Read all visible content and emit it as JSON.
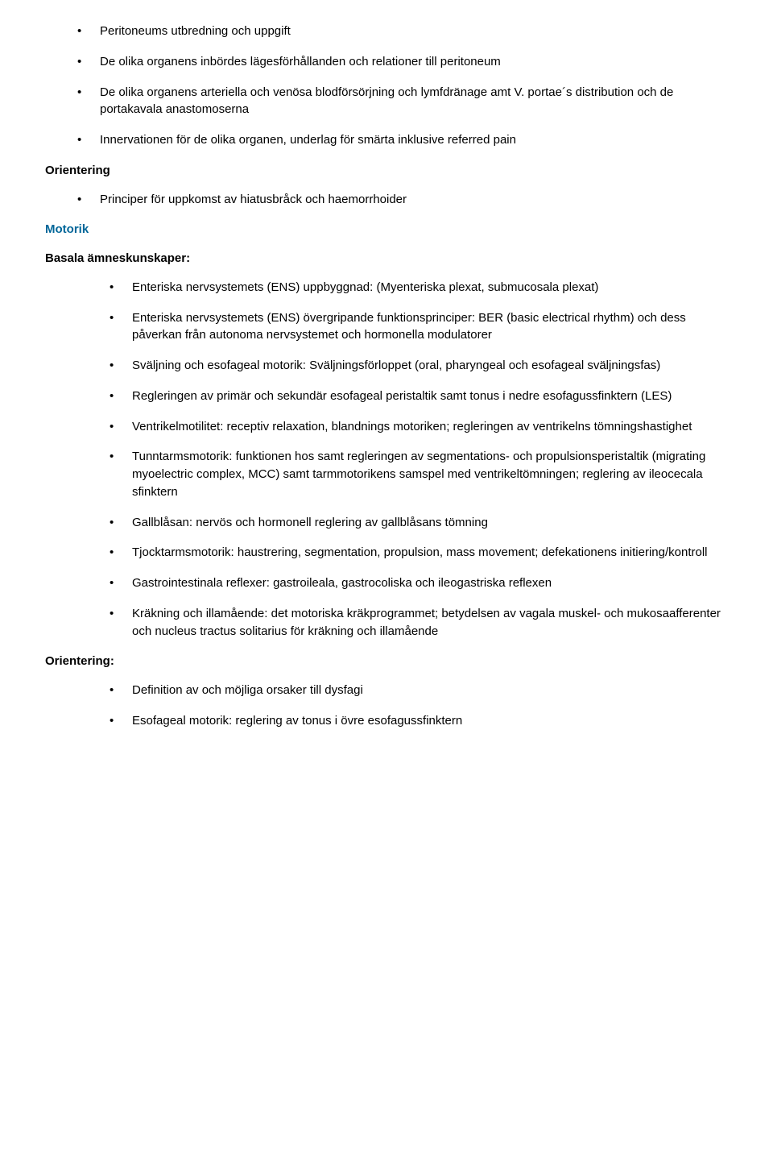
{
  "top_items": [
    "Peritoneums utbredning och uppgift",
    "De olika organens inbördes lägesförhållanden och relationer till peritoneum",
    "De olika organens arteriella och venösa blodförsörjning och lymfdränage amt V. portae´s distribution och de portakavala anastomoserna",
    "Innervationen för de olika organen, underlag för smärta inklusive referred pain"
  ],
  "orientering1": {
    "heading": "Orientering",
    "items": [
      "Principer för uppkomst av hiatusbråck och haemorrhoider"
    ]
  },
  "motorik": {
    "heading": "Motorik",
    "subheading": "Basala ämneskunskaper:",
    "items": [
      "Enteriska nervsystemets (ENS) uppbyggnad: (Myenteriska plexat, submucosala plexat)",
      "Enteriska nervsystemets (ENS) övergripande funktionsprinciper: BER (basic electrical rhythm) och dess påverkan från autonoma nervsystemet och hormonella modulatorer",
      "Sväljning och esofageal motorik: Sväljningsförloppet (oral, pharyngeal och esofageal sväljningsfas)",
      "Regleringen av primär och sekundär esofageal peristaltik samt tonus i nedre esofagussfinktern (LES)",
      "Ventrikelmotilitet: receptiv relaxation, blandnings motoriken; regleringen av ventrikelns tömningshastighet",
      "Tunntarmsmotorik: funktionen hos samt regleringen av segmentations- och propulsionsperistaltik (migrating myoelectric complex, MCC) samt tarmmotorikens samspel med ventrikeltömningen;  reglering av ileocecala sfinktern",
      "Gallblåsan: nervös och hormonell reglering av gallblåsans tömning",
      "Tjocktarmsmotorik: haustrering, segmentation, propulsion, mass movement; defekationens initiering/kontroll",
      "Gastrointestinala reflexer: gastroileala, gastrocoliska och ileogastriska reflexen",
      "Kräkning och illamående: det motoriska kräkprogrammet; betydelsen av vagala muskel- och mukosaafferenter och nucleus tractus solitarius för kräkning och illamående"
    ]
  },
  "orientering2": {
    "heading": "Orientering:",
    "items": [
      "Definition av och möjliga orsaker till dysfagi",
      "Esofageal motorik: reglering av tonus i övre esofagussfinktern"
    ]
  }
}
